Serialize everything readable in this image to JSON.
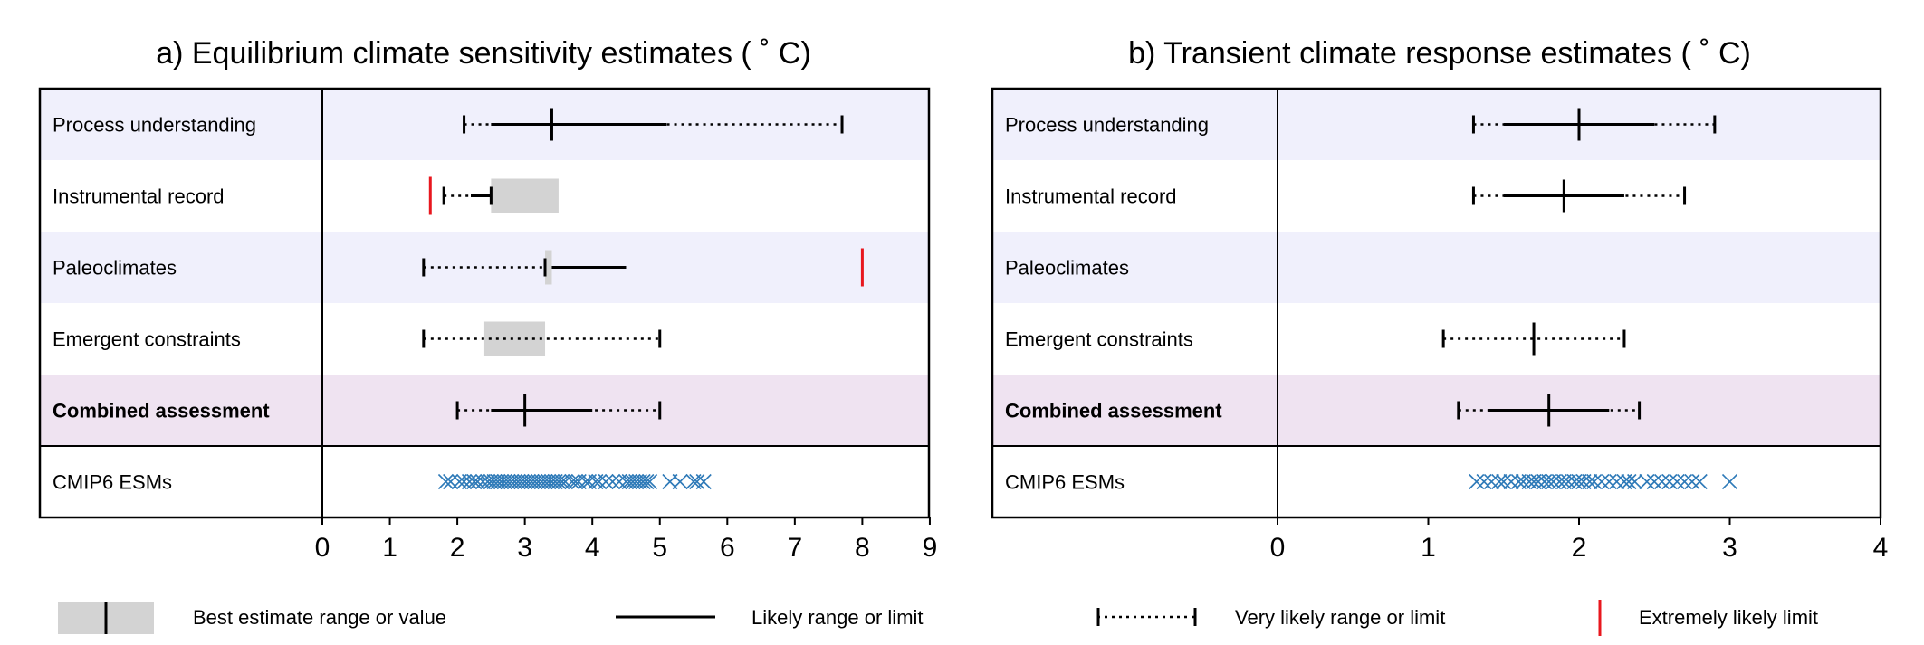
{
  "chart_data": [
    {
      "type": "range",
      "title": "a) Equilibrium climate sensitivity estimates ( ˚ C)",
      "xlim": [
        0,
        9
      ],
      "xticks": [
        "0",
        "1",
        "2",
        "3",
        "4",
        "5",
        "6",
        "7",
        "8",
        "9"
      ],
      "grid": false,
      "rows": [
        {
          "label": "Process understanding",
          "bold": false,
          "shade": "#f0f0fc",
          "very_likely": [
            2.1,
            7.7
          ],
          "likely": [
            2.5,
            5.1
          ],
          "best": 3.4
        },
        {
          "label": "Instrumental record",
          "bold": false,
          "shade": "#ffffff",
          "very_likely": [
            1.8,
            2.5
          ],
          "likely": [
            2.2,
            2.5
          ],
          "best_range": [
            2.5,
            3.5
          ],
          "extremely_likely": [
            1.6
          ]
        },
        {
          "label": "Paleoclimates",
          "bold": false,
          "shade": "#f0f0fc",
          "very_likely": [
            1.5,
            3.3
          ],
          "likely": [
            3.4,
            4.5
          ],
          "best_range": [
            3.3,
            3.4
          ],
          "extremely_likely": [
            8.0
          ]
        },
        {
          "label": "Emergent constraints",
          "bold": false,
          "shade": "#ffffff",
          "very_likely": [
            1.5,
            5.0
          ],
          "best_range": [
            2.4,
            3.3
          ]
        },
        {
          "label": "Combined assessment",
          "bold": true,
          "shade": "#efe3f1",
          "very_likely": [
            2.0,
            5.0
          ],
          "likely": [
            2.5,
            4.0
          ],
          "best": 3.0
        },
        {
          "label": "CMIP6 ESMs",
          "bold": false,
          "shade": "#ffffff",
          "points": [
            1.83,
            1.9,
            2.03,
            2.1,
            2.18,
            2.25,
            2.3,
            2.38,
            2.45,
            2.5,
            2.55,
            2.6,
            2.65,
            2.7,
            2.75,
            2.8,
            2.85,
            2.9,
            2.95,
            3.0,
            3.05,
            3.1,
            3.15,
            3.2,
            3.25,
            3.3,
            3.35,
            3.4,
            3.45,
            3.5,
            3.55,
            3.6,
            3.7,
            3.75,
            3.8,
            3.9,
            3.95,
            4.05,
            4.1,
            4.2,
            4.3,
            4.4,
            4.5,
            4.55,
            4.6,
            4.65,
            4.7,
            4.75,
            4.8,
            4.85,
            5.15,
            5.3,
            5.5,
            5.55,
            5.65
          ]
        }
      ]
    },
    {
      "type": "range",
      "title": "b) Transient climate response estimates ( ˚ C)",
      "xlim": [
        0,
        4
      ],
      "xticks": [
        "0",
        "1",
        "2",
        "3",
        "4"
      ],
      "grid": false,
      "rows": [
        {
          "label": "Process understanding",
          "bold": false,
          "shade": "#f0f0fc",
          "very_likely": [
            1.3,
            2.9
          ],
          "likely": [
            1.5,
            2.5
          ],
          "best": 2.0
        },
        {
          "label": "Instrumental record",
          "bold": false,
          "shade": "#ffffff",
          "very_likely": [
            1.3,
            2.7
          ],
          "likely": [
            1.5,
            2.3
          ],
          "best": 1.9
        },
        {
          "label": "Paleoclimates",
          "bold": false,
          "shade": "#f0f0fc"
        },
        {
          "label": "Emergent constraints",
          "bold": false,
          "shade": "#ffffff",
          "very_likely": [
            1.1,
            2.3
          ],
          "best": 1.7
        },
        {
          "label": "Combined assessment",
          "bold": true,
          "shade": "#efe3f1",
          "very_likely": [
            1.2,
            2.4
          ],
          "likely": [
            1.4,
            2.2
          ],
          "best": 1.8
        },
        {
          "label": "CMIP6 ESMs",
          "bold": false,
          "shade": "#ffffff",
          "points": [
            1.32,
            1.37,
            1.42,
            1.47,
            1.5,
            1.55,
            1.6,
            1.63,
            1.67,
            1.7,
            1.73,
            1.77,
            1.8,
            1.83,
            1.87,
            1.9,
            1.93,
            1.97,
            2.0,
            2.03,
            2.07,
            2.1,
            2.15,
            2.2,
            2.25,
            2.3,
            2.33,
            2.37,
            2.45,
            2.5,
            2.55,
            2.6,
            2.65,
            2.7,
            2.75,
            2.8,
            3.0
          ]
        }
      ]
    }
  ],
  "legend": {
    "best": "Best estimate range or value",
    "likely": "Likely range or limit",
    "very_likely": "Very likely range or limit",
    "extremely_likely": "Extremely likely limit"
  },
  "colors": {
    "best_fill": "#d3d3d3",
    "extremely_likely": "#e8171e",
    "cmip6": "#2e7ab8",
    "line": "#000000"
  }
}
